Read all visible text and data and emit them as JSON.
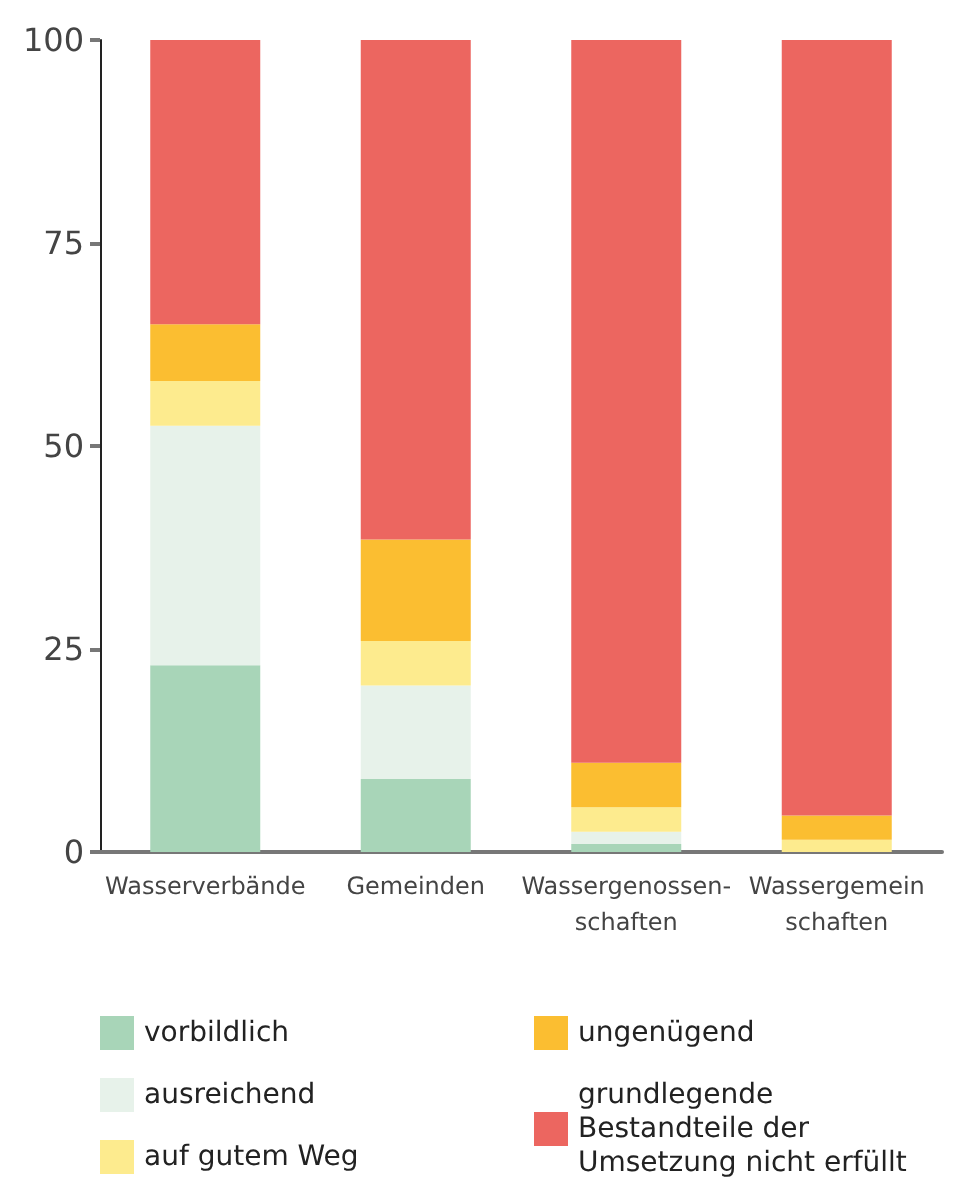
{
  "chart_data": {
    "type": "bar",
    "stacked": true,
    "categories": [
      "Wasserverbände",
      "Gemeinden",
      "Wassergenossen-\nschaften",
      "Wassergemein\nschaften"
    ],
    "series": [
      {
        "name": "vorbildlich",
        "color": "#a8d5b8",
        "values": [
          23,
          9,
          1,
          0
        ]
      },
      {
        "name": "ausreichend",
        "color": "#e7f2ea",
        "values": [
          29.5,
          11.5,
          1.5,
          0
        ]
      },
      {
        "name": "auf gutem Weg",
        "color": "#fdeb8e",
        "values": [
          5.5,
          5.5,
          3,
          1.5
        ]
      },
      {
        "name": "ungenügend",
        "color": "#fbbe31",
        "values": [
          7,
          12.5,
          5.5,
          3
        ]
      },
      {
        "name": "grundlegende Bestandteile der Umsetzung nicht erfüllt",
        "color": "#ec6660",
        "values": [
          35,
          61.5,
          89,
          95.5
        ]
      }
    ],
    "ylim": [
      0,
      100
    ],
    "yticks": [
      0,
      25,
      50,
      75,
      100
    ],
    "grid": false,
    "legend": "bottom"
  }
}
